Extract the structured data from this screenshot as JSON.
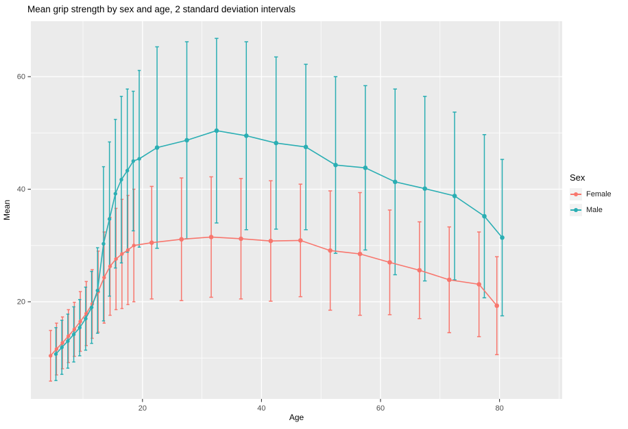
{
  "title": "Mean grip strength by sex and age, 2 standard deviation intervals",
  "x_axis": {
    "label": "Age",
    "tick_labels": [
      "20",
      "40",
      "60",
      "80"
    ]
  },
  "y_axis": {
    "label": "Mean",
    "tick_labels": [
      "20",
      "40",
      "60"
    ]
  },
  "legend": {
    "title": "Sex",
    "items": [
      {
        "label": "Female",
        "color": "#F8766D"
      },
      {
        "label": "Male",
        "color": "#2AAEB3"
      }
    ]
  },
  "colors": {
    "panel_background": "#EBEBEB",
    "gridline": "#FFFFFF",
    "tick_text": "#4D4D4D",
    "tick_mark": "#333333",
    "female": "#F8766D",
    "male": "#2AAEB3"
  },
  "chart_data": {
    "type": "pointrange-line",
    "title": "Mean grip strength by sex and age, 2 standard deviation intervals",
    "xlabel": "Age",
    "ylabel": "Mean",
    "interval": "mean ± 2 standard deviations",
    "x_domain": [
      1.24,
      90.53
    ],
    "y_domain": [
      2.74,
      69.85
    ],
    "x_major_ticks": [
      20,
      40,
      60,
      80
    ],
    "x_minor_ticks": [
      10,
      30,
      50,
      70,
      90
    ],
    "y_major_ticks": [
      20,
      40,
      60
    ],
    "y_minor_ticks": [
      10,
      30,
      50
    ],
    "grid": true,
    "legend_position": "right",
    "ages": [
      5,
      6,
      7,
      8,
      9,
      10,
      11,
      12,
      13,
      14,
      15,
      16,
      17,
      18,
      19,
      22,
      27,
      32,
      37,
      42,
      47,
      52,
      57,
      62,
      67,
      72,
      77,
      80
    ],
    "series": [
      {
        "name": "Female",
        "color": "#F8766D",
        "dodge": -0.45,
        "mean": [
          10.4,
          11.6,
          12.7,
          13.9,
          15.1,
          16.5,
          17.9,
          19.6,
          21.8,
          24.3,
          26.3,
          27.6,
          28.5,
          29.2,
          30.0,
          30.5,
          31.1,
          31.5,
          31.2,
          30.8,
          30.9,
          29.1,
          28.5,
          27.0,
          25.6,
          23.9,
          23.1,
          19.3
        ],
        "lower": [
          5.9,
          7.0,
          8.1,
          9.2,
          10.3,
          11.2,
          12.2,
          13.5,
          14.6,
          16.2,
          17.6,
          18.6,
          18.8,
          19.5,
          20.0,
          20.5,
          20.2,
          20.8,
          20.5,
          20.1,
          20.9,
          18.5,
          17.6,
          17.7,
          17.0,
          14.5,
          13.8,
          10.6
        ],
        "upper": [
          14.9,
          16.2,
          17.3,
          18.6,
          19.9,
          21.8,
          23.6,
          25.7,
          29.0,
          32.4,
          35.0,
          36.6,
          38.2,
          38.9,
          40.0,
          40.5,
          42.0,
          42.2,
          41.9,
          41.5,
          40.9,
          39.7,
          39.4,
          36.3,
          34.2,
          33.3,
          32.4,
          28.0
        ]
      },
      {
        "name": "Male",
        "color": "#2AAEB3",
        "dodge": 0.45,
        "mean": [
          10.7,
          11.9,
          13.0,
          14.2,
          15.4,
          17.0,
          19.0,
          22.0,
          30.3,
          34.7,
          39.2,
          41.7,
          43.3,
          45.0,
          45.4,
          47.4,
          48.7,
          50.4,
          49.5,
          48.2,
          47.5,
          44.3,
          43.8,
          41.3,
          40.1,
          38.8,
          35.2,
          31.4
        ],
        "lower": [
          6.0,
          7.1,
          8.2,
          9.3,
          10.4,
          11.4,
          12.6,
          14.4,
          16.6,
          21.0,
          26.0,
          26.9,
          28.8,
          32.6,
          29.7,
          29.5,
          31.2,
          34.0,
          32.8,
          32.9,
          32.8,
          28.6,
          29.2,
          24.8,
          23.7,
          23.9,
          20.7,
          17.5
        ],
        "upper": [
          15.4,
          16.7,
          17.8,
          19.1,
          20.4,
          22.6,
          25.4,
          29.6,
          44.0,
          48.4,
          52.4,
          56.5,
          57.8,
          57.4,
          61.1,
          65.3,
          66.2,
          66.8,
          66.2,
          63.5,
          62.2,
          60.0,
          58.4,
          57.8,
          56.5,
          53.7,
          49.7,
          45.3
        ]
      }
    ]
  }
}
